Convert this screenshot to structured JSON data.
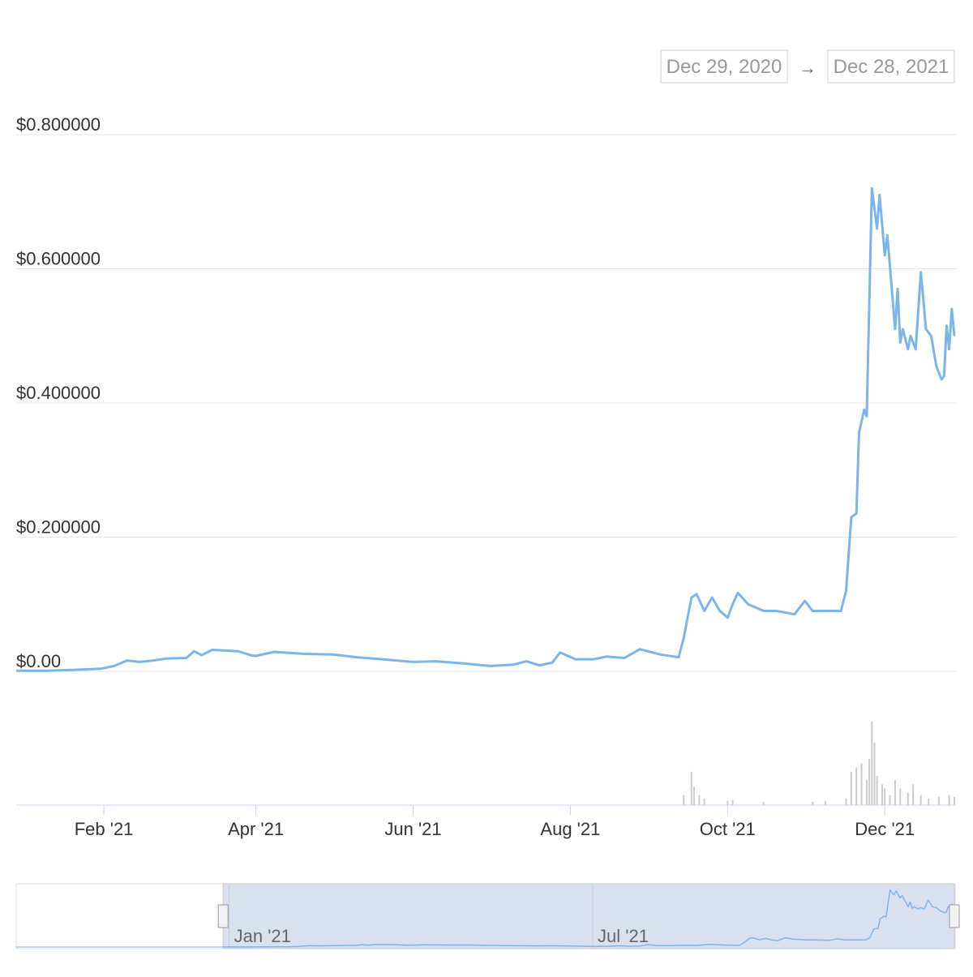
{
  "chart_data": {
    "type": "line",
    "range_selector": {
      "from": "Dec 29, 2020",
      "arrow": "→",
      "to": "Dec 28, 2021"
    },
    "x": [
      "2020-12-29",
      "2021-01-10",
      "2021-01-20",
      "2021-01-31",
      "2021-02-05",
      "2021-02-10",
      "2021-02-15",
      "2021-02-20",
      "2021-02-25",
      "2021-03-05",
      "2021-03-08",
      "2021-03-11",
      "2021-03-15",
      "2021-03-25",
      "2021-03-30",
      "2021-04-01",
      "2021-04-08",
      "2021-04-20",
      "2021-05-01",
      "2021-05-10",
      "2021-05-20",
      "2021-06-01",
      "2021-06-10",
      "2021-06-20",
      "2021-07-01",
      "2021-07-10",
      "2021-07-15",
      "2021-07-20",
      "2021-07-25",
      "2021-07-28",
      "2021-08-03",
      "2021-08-10",
      "2021-08-15",
      "2021-08-22",
      "2021-08-28",
      "2021-09-05",
      "2021-09-12",
      "2021-09-14",
      "2021-09-17",
      "2021-09-19",
      "2021-09-22",
      "2021-09-25",
      "2021-09-28",
      "2021-10-01",
      "2021-10-03",
      "2021-10-05",
      "2021-10-09",
      "2021-10-15",
      "2021-10-20",
      "2021-10-27",
      "2021-10-31",
      "2021-11-03",
      "2021-11-10",
      "2021-11-14",
      "2021-11-16",
      "2021-11-18",
      "2021-11-20",
      "2021-11-21",
      "2021-11-23",
      "2021-11-24",
      "2021-11-26",
      "2021-11-28",
      "2021-11-29",
      "2021-12-01",
      "2021-12-02",
      "2021-12-05",
      "2021-12-06",
      "2021-12-07",
      "2021-12-08",
      "2021-12-10",
      "2021-12-11",
      "2021-12-13",
      "2021-12-15",
      "2021-12-17",
      "2021-12-19",
      "2021-12-21",
      "2021-12-23",
      "2021-12-24",
      "2021-12-25",
      "2021-12-26",
      "2021-12-27",
      "2021-12-28"
    ],
    "series": [
      {
        "color": "#7cb5ec",
        "values": [
          0.001,
          0.001,
          0.002,
          0.004,
          0.008,
          0.016,
          0.014,
          0.016,
          0.019,
          0.02,
          0.03,
          0.024,
          0.032,
          0.03,
          0.024,
          0.023,
          0.029,
          0.026,
          0.025,
          0.021,
          0.018,
          0.014,
          0.015,
          0.012,
          0.008,
          0.01,
          0.015,
          0.009,
          0.013,
          0.028,
          0.018,
          0.018,
          0.022,
          0.02,
          0.033,
          0.025,
          0.021,
          0.05,
          0.11,
          0.115,
          0.09,
          0.11,
          0.09,
          0.08,
          0.1,
          0.117,
          0.1,
          0.09,
          0.09,
          0.085,
          0.105,
          0.09,
          0.09,
          0.09,
          0.12,
          0.23,
          0.235,
          0.355,
          0.39,
          0.38,
          0.72,
          0.66,
          0.71,
          0.62,
          0.65,
          0.51,
          0.57,
          0.49,
          0.51,
          0.48,
          0.5,
          0.48,
          0.595,
          0.51,
          0.5,
          0.455,
          0.435,
          0.44,
          0.515,
          0.48,
          0.54,
          0.5
        ]
      }
    ],
    "xlim": [
      "2020-12-29",
      "2021-12-28"
    ],
    "xticks": [
      {
        "value": "2021-02-01",
        "label": "Feb '21"
      },
      {
        "value": "2021-04-01",
        "label": "Apr '21"
      },
      {
        "value": "2021-06-01",
        "label": "Jun '21"
      },
      {
        "value": "2021-08-01",
        "label": "Aug '21"
      },
      {
        "value": "2021-10-01",
        "label": "Oct '21"
      },
      {
        "value": "2021-12-01",
        "label": "Dec '21"
      }
    ],
    "ylim": [
      0,
      0.8
    ],
    "yticks": [
      {
        "value": 0,
        "label": "$0.00"
      },
      {
        "value": 0.2,
        "label": "$0.200000"
      },
      {
        "value": 0.4,
        "label": "$0.400000"
      },
      {
        "value": 0.6,
        "label": "$0.600000"
      },
      {
        "value": 0.8,
        "label": "$0.800000"
      }
    ],
    "grid": true,
    "volume": {
      "color": "#cccccc",
      "vlim": [
        0,
        100
      ],
      "x": [
        "2021-09-14",
        "2021-09-17",
        "2021-09-18",
        "2021-09-20",
        "2021-09-22",
        "2021-10-01",
        "2021-10-03",
        "2021-10-15",
        "2021-11-03",
        "2021-11-08",
        "2021-11-16",
        "2021-11-18",
        "2021-11-20",
        "2021-11-22",
        "2021-11-24",
        "2021-11-25",
        "2021-11-26",
        "2021-11-27",
        "2021-11-28",
        "2021-11-30",
        "2021-12-01",
        "2021-12-03",
        "2021-12-05",
        "2021-12-07",
        "2021-12-10",
        "2021-12-12",
        "2021-12-15",
        "2021-12-18",
        "2021-12-22",
        "2021-12-26",
        "2021-12-28"
      ],
      "values": [
        12,
        40,
        22,
        12,
        8,
        5,
        6,
        4,
        4,
        5,
        8,
        40,
        45,
        50,
        30,
        55,
        100,
        75,
        35,
        25,
        20,
        12,
        30,
        20,
        15,
        25,
        12,
        8,
        10,
        12,
        10
      ]
    },
    "navigator": {
      "xlim": [
        "2020-09-17",
        "2021-12-28"
      ],
      "xticks": [
        {
          "value": "2021-01-01",
          "label": "Jan '21"
        },
        {
          "value": "2021-07-01",
          "label": "Jul '21"
        }
      ]
    }
  }
}
